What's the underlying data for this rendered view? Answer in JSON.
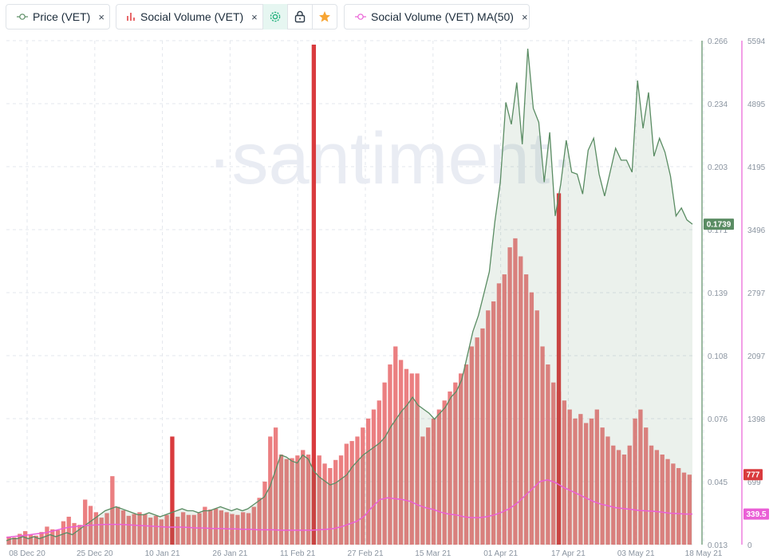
{
  "metrics": [
    {
      "label": "Price (VET)",
      "icon": "line-chart-icon",
      "color": "#5a8c63",
      "close": "×"
    },
    {
      "label": "Social Volume (VET)",
      "icon": "bar-chart-icon",
      "color": "#e8696b",
      "close": "×"
    },
    {
      "label": "Social Volume (VET) MA(50)",
      "icon": "line-chart-icon",
      "color": "#ea5fd6",
      "close": "×"
    }
  ],
  "tools": [
    {
      "name": "settings-icon",
      "color": "#26b27f"
    },
    {
      "name": "lock-icon",
      "color": "#2d3a48"
    },
    {
      "name": "star-icon",
      "color": "#f7a534"
    }
  ],
  "watermark": "·santiment·",
  "chart_data": {
    "type": "line",
    "x_ticks": [
      "08 Dec 20",
      "25 Dec 20",
      "10 Jan 21",
      "26 Jan 21",
      "11 Feb 21",
      "27 Feb 21",
      "15 Mar 21",
      "01 Apr 21",
      "17 Apr 21",
      "03 May 21",
      "18 May 21"
    ],
    "y_left_ticks": [
      "0.266",
      "0.234",
      "0.203",
      "0.171",
      "0.139",
      "0.108",
      "0.076",
      "0.045",
      "0.013"
    ],
    "y_right_ticks": [
      "5594",
      "4895",
      "4195",
      "3496",
      "2797",
      "2097",
      "1398",
      "699",
      "0"
    ],
    "y_left_range": [
      0.013,
      0.266
    ],
    "y_right_range": [
      0,
      5594
    ],
    "current_price": "0.1739",
    "current_volume": "777",
    "current_ma": "339.5",
    "series": [
      {
        "name": "Price (VET)",
        "type": "area",
        "axis": "left",
        "color": "#5a8c63",
        "values": [
          0.015,
          0.016,
          0.016,
          0.017,
          0.016,
          0.017,
          0.016,
          0.017,
          0.018,
          0.017,
          0.018,
          0.019,
          0.018,
          0.02,
          0.022,
          0.024,
          0.026,
          0.028,
          0.03,
          0.031,
          0.032,
          0.031,
          0.03,
          0.029,
          0.028,
          0.028,
          0.029,
          0.028,
          0.027,
          0.028,
          0.029,
          0.03,
          0.031,
          0.03,
          0.03,
          0.029,
          0.03,
          0.03,
          0.031,
          0.032,
          0.031,
          0.03,
          0.031,
          0.03,
          0.031,
          0.033,
          0.035,
          0.037,
          0.042,
          0.05,
          0.058,
          0.057,
          0.055,
          0.054,
          0.058,
          0.056,
          0.05,
          0.047,
          0.045,
          0.043,
          0.044,
          0.046,
          0.048,
          0.052,
          0.055,
          0.058,
          0.06,
          0.062,
          0.064,
          0.067,
          0.072,
          0.076,
          0.08,
          0.083,
          0.087,
          0.083,
          0.081,
          0.079,
          0.076,
          0.079,
          0.082,
          0.087,
          0.09,
          0.096,
          0.108,
          0.12,
          0.128,
          0.139,
          0.15,
          0.175,
          0.195,
          0.235,
          0.224,
          0.245,
          0.214,
          0.262,
          0.232,
          0.225,
          0.195,
          0.22,
          0.178,
          0.194,
          0.216,
          0.2,
          0.199,
          0.189,
          0.211,
          0.217,
          0.199,
          0.188,
          0.2,
          0.212,
          0.206,
          0.206,
          0.2,
          0.246,
          0.222,
          0.24,
          0.208,
          0.217,
          0.21,
          0.198,
          0.178,
          0.182,
          0.176,
          0.1739
        ]
      },
      {
        "name": "Social Volume (VET)",
        "type": "bar",
        "axis": "right",
        "color": "#e8696b",
        "values": [
          90,
          80,
          120,
          150,
          110,
          100,
          140,
          200,
          170,
          160,
          260,
          310,
          240,
          220,
          500,
          430,
          360,
          300,
          350,
          760,
          420,
          380,
          320,
          340,
          360,
          340,
          300,
          320,
          280,
          330,
          300,
          310,
          360,
          330,
          330,
          350,
          420,
          390,
          400,
          380,
          360,
          340,
          330,
          360,
          350,
          420,
          520,
          700,
          1200,
          1300,
          1000,
          950,
          960,
          990,
          1050,
          1000,
          960,
          990,
          900,
          850,
          940,
          990,
          1120,
          1150,
          1200,
          1300,
          1400,
          1500,
          1600,
          1800,
          2000,
          2200,
          2050,
          1950,
          1900,
          1900,
          1200,
          1300,
          1400,
          1500,
          1600,
          1700,
          1800,
          1900,
          2000,
          2200,
          2300,
          2400,
          2600,
          2700,
          2900,
          3000,
          3300,
          3400,
          3200,
          3000,
          2800,
          2600,
          2200,
          2000,
          1800,
          1700,
          1600,
          1500,
          1400,
          1450,
          1350,
          1400,
          1500,
          1300,
          1200,
          1100,
          1050,
          1000,
          1100,
          1400,
          1500,
          1300,
          1100,
          1050,
          1000,
          950,
          900,
          850,
          800,
          777
        ],
        "spikes": [
          {
            "index": 56,
            "value": 5550
          },
          {
            "index": 101,
            "value": 3900
          },
          {
            "index": 30,
            "value": 1200
          }
        ]
      },
      {
        "name": "Social Volume (VET) MA(50)",
        "type": "line",
        "axis": "right",
        "color": "#ea5fd6",
        "values": [
          80,
          90,
          100,
          110,
          120,
          130,
          150,
          170,
          190,
          200,
          210,
          215,
          220,
          225,
          225,
          225,
          220,
          215,
          210,
          205,
          200,
          195,
          195,
          195,
          190,
          185,
          185,
          180,
          180,
          175,
          175,
          170,
          170,
          165,
          165,
          165,
          160,
          160,
          160,
          160,
          160,
          165,
          170,
          180,
          200,
          230,
          260,
          320,
          420,
          500,
          520,
          510,
          500,
          480,
          440,
          410,
          390,
          360,
          340,
          330,
          310,
          300,
          300,
          310,
          330,
          360,
          400,
          460,
          540,
          620,
          700,
          720,
          690,
          640,
          600,
          560,
          520,
          480,
          450,
          430,
          410,
          400,
          390,
          380,
          375,
          370,
          360,
          350,
          345,
          340,
          339.5
        ]
      }
    ]
  }
}
